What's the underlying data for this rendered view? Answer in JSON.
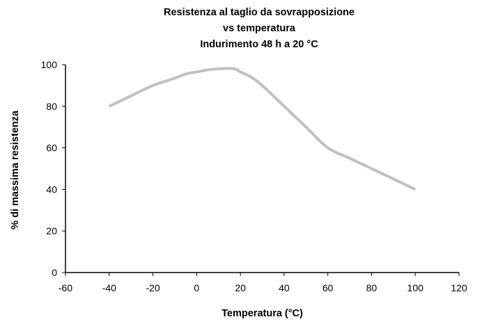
{
  "chart_data": {
    "type": "line",
    "title_lines": [
      "Resistenza al taglio da sovrapposizione",
      "vs temperatura",
      "Indurimento 48 h a 20 °C"
    ],
    "xlabel": "Temperatura (°C)",
    "ylabel": "% di massima resistenza",
    "xlim": [
      -60,
      120
    ],
    "ylim": [
      0,
      100
    ],
    "x_ticks": [
      -60,
      -40,
      -20,
      0,
      20,
      40,
      60,
      80,
      100,
      120
    ],
    "y_ticks": [
      0,
      20,
      40,
      60,
      80,
      100
    ],
    "grid": false,
    "legend": "none",
    "series": [
      {
        "color": "#c0c0c0",
        "x": [
          -40,
          -30,
          -20,
          -10,
          -5,
          0,
          5,
          10,
          15,
          18,
          20,
          25,
          30,
          40,
          50,
          60,
          70,
          80,
          90,
          100
        ],
        "y": [
          80,
          85,
          90,
          93.5,
          95.5,
          96.5,
          97.5,
          98,
          98.2,
          97.8,
          96.5,
          94,
          90,
          80,
          70,
          60,
          55,
          50,
          45,
          40
        ]
      }
    ]
  }
}
